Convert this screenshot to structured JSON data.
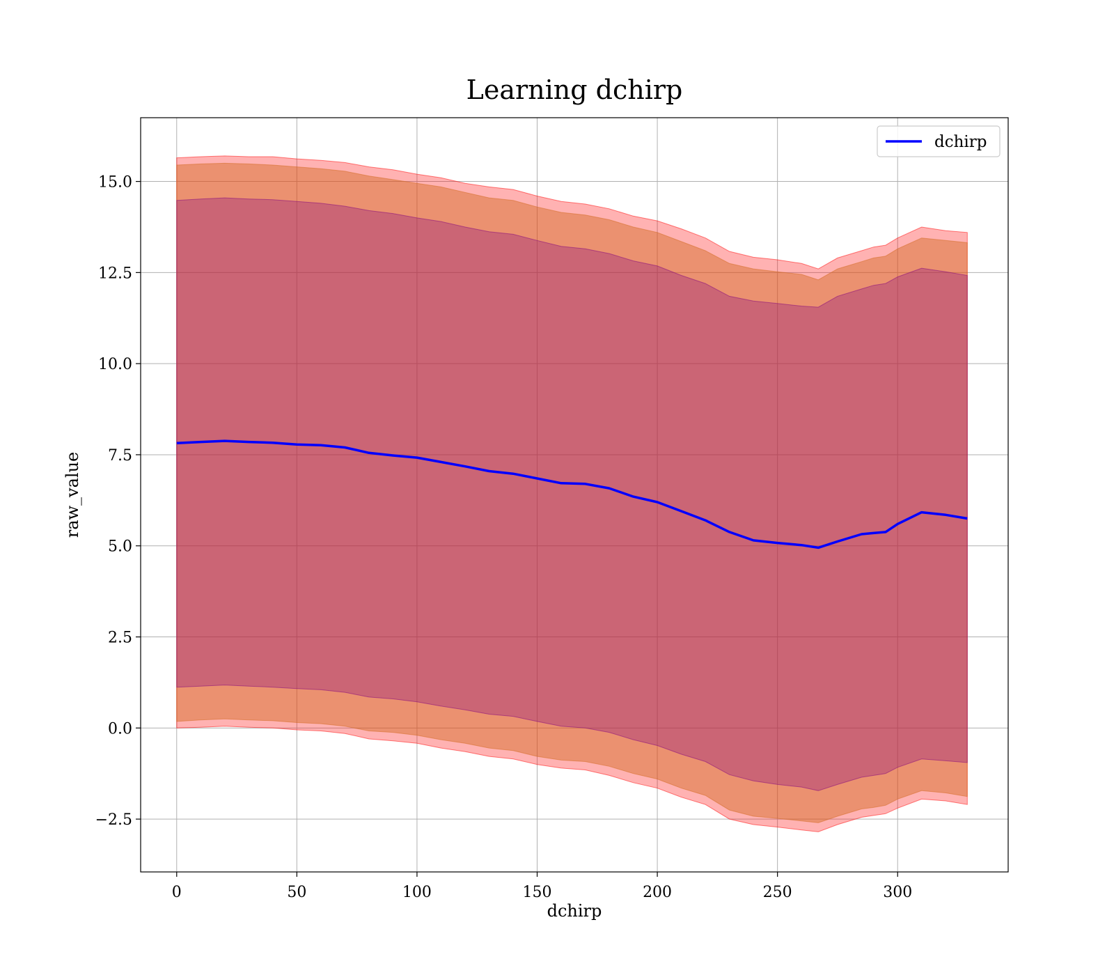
{
  "chart_data": {
    "type": "area",
    "title": "Learning dchirp",
    "xlabel": "dchirp",
    "ylabel": "raw_value",
    "xlim": [
      -15,
      346
    ],
    "ylim": [
      -3.95,
      16.75
    ],
    "grid": true,
    "legend_position": "top-right",
    "x_ticks": [
      0,
      50,
      100,
      150,
      200,
      250,
      300
    ],
    "x_tick_labels": [
      "0",
      "50",
      "100",
      "150",
      "200",
      "250",
      "300"
    ],
    "y_ticks": [
      -2.5,
      0.0,
      2.5,
      5.0,
      7.5,
      10.0,
      12.5,
      15.0
    ],
    "y_tick_labels": [
      "−2.5",
      "0.0",
      "2.5",
      "5.0",
      "7.5",
      "10.0",
      "12.5",
      "15.0"
    ],
    "colors": {
      "line": "#0000ff",
      "band_outer": "#ff0000",
      "band_middle": "#d2691e",
      "band_inner": "#800080"
    },
    "series": [
      {
        "name": "dchirp",
        "x": [
          0,
          10,
          20,
          30,
          40,
          50,
          60,
          70,
          80,
          90,
          100,
          110,
          120,
          130,
          140,
          150,
          160,
          170,
          180,
          190,
          200,
          210,
          220,
          230,
          240,
          250,
          260,
          267,
          275,
          285,
          290,
          295,
          300,
          310,
          320,
          329
        ],
        "y": [
          7.82,
          7.85,
          7.88,
          7.85,
          7.83,
          7.78,
          7.76,
          7.7,
          7.55,
          7.48,
          7.42,
          7.3,
          7.18,
          7.05,
          6.98,
          6.85,
          6.72,
          6.7,
          6.58,
          6.35,
          6.2,
          5.95,
          5.7,
          5.38,
          5.15,
          5.08,
          5.02,
          4.95,
          5.12,
          5.32,
          5.35,
          5.38,
          5.6,
          5.92,
          5.85,
          5.75
        ]
      }
    ],
    "bands": [
      {
        "x": [
          0,
          10,
          20,
          30,
          40,
          50,
          60,
          70,
          80,
          90,
          100,
          110,
          120,
          130,
          140,
          150,
          160,
          170,
          180,
          190,
          200,
          210,
          220,
          230,
          240,
          250,
          260,
          267,
          275,
          285,
          290,
          295,
          300,
          310,
          320,
          329
        ],
        "upper": [
          15.65,
          15.68,
          15.7,
          15.68,
          15.68,
          15.62,
          15.58,
          15.52,
          15.4,
          15.32,
          15.2,
          15.1,
          14.95,
          14.85,
          14.78,
          14.6,
          14.45,
          14.38,
          14.25,
          14.05,
          13.92,
          13.7,
          13.45,
          13.08,
          12.92,
          12.85,
          12.75,
          12.6,
          12.9,
          13.1,
          13.2,
          13.25,
          13.45,
          13.75,
          13.65,
          13.6
        ],
        "lower": [
          0.0,
          0.02,
          0.05,
          0.02,
          0.0,
          -0.05,
          -0.08,
          -0.15,
          -0.3,
          -0.35,
          -0.42,
          -0.55,
          -0.65,
          -0.78,
          -0.85,
          -1.0,
          -1.1,
          -1.15,
          -1.3,
          -1.5,
          -1.65,
          -1.9,
          -2.1,
          -2.5,
          -2.65,
          -2.72,
          -2.8,
          -2.85,
          -2.65,
          -2.45,
          -2.4,
          -2.35,
          -2.2,
          -1.95,
          -2.0,
          -2.1
        ]
      },
      {
        "x": [
          0,
          10,
          20,
          30,
          40,
          50,
          60,
          70,
          80,
          90,
          100,
          110,
          120,
          130,
          140,
          150,
          160,
          170,
          180,
          190,
          200,
          210,
          220,
          230,
          240,
          250,
          260,
          267,
          275,
          285,
          290,
          295,
          300,
          310,
          320,
          329
        ],
        "upper": [
          15.45,
          15.48,
          15.5,
          15.48,
          15.45,
          15.4,
          15.35,
          15.28,
          15.15,
          15.05,
          14.95,
          14.85,
          14.7,
          14.55,
          14.48,
          14.3,
          14.15,
          14.08,
          13.95,
          13.75,
          13.6,
          13.35,
          13.1,
          12.75,
          12.6,
          12.52,
          12.45,
          12.3,
          12.6,
          12.8,
          12.9,
          12.95,
          13.15,
          13.45,
          13.38,
          13.32
        ],
        "lower": [
          0.18,
          0.22,
          0.25,
          0.22,
          0.2,
          0.15,
          0.12,
          0.05,
          -0.08,
          -0.12,
          -0.2,
          -0.32,
          -0.42,
          -0.55,
          -0.62,
          -0.78,
          -0.88,
          -0.92,
          -1.05,
          -1.25,
          -1.4,
          -1.65,
          -1.85,
          -2.25,
          -2.42,
          -2.48,
          -2.55,
          -2.6,
          -2.42,
          -2.22,
          -2.18,
          -2.12,
          -1.95,
          -1.72,
          -1.78,
          -1.88
        ]
      },
      {
        "x": [
          0,
          10,
          20,
          30,
          40,
          50,
          60,
          70,
          80,
          90,
          100,
          110,
          120,
          130,
          140,
          150,
          160,
          170,
          180,
          190,
          200,
          210,
          220,
          230,
          240,
          250,
          260,
          267,
          275,
          285,
          290,
          295,
          300,
          310,
          320,
          329
        ],
        "upper": [
          14.48,
          14.52,
          14.55,
          14.52,
          14.5,
          14.45,
          14.4,
          14.32,
          14.2,
          14.12,
          14.0,
          13.9,
          13.75,
          13.62,
          13.55,
          13.38,
          13.22,
          13.15,
          13.02,
          12.82,
          12.68,
          12.42,
          12.2,
          11.85,
          11.72,
          11.65,
          11.58,
          11.55,
          11.85,
          12.05,
          12.15,
          12.2,
          12.38,
          12.62,
          12.52,
          12.42
        ],
        "lower": [
          1.12,
          1.15,
          1.18,
          1.15,
          1.12,
          1.08,
          1.05,
          0.98,
          0.85,
          0.8,
          0.72,
          0.6,
          0.5,
          0.38,
          0.32,
          0.18,
          0.05,
          0.0,
          -0.12,
          -0.32,
          -0.48,
          -0.72,
          -0.92,
          -1.28,
          -1.45,
          -1.55,
          -1.62,
          -1.72,
          -1.55,
          -1.35,
          -1.3,
          -1.25,
          -1.08,
          -0.85,
          -0.9,
          -0.95
        ]
      }
    ]
  }
}
